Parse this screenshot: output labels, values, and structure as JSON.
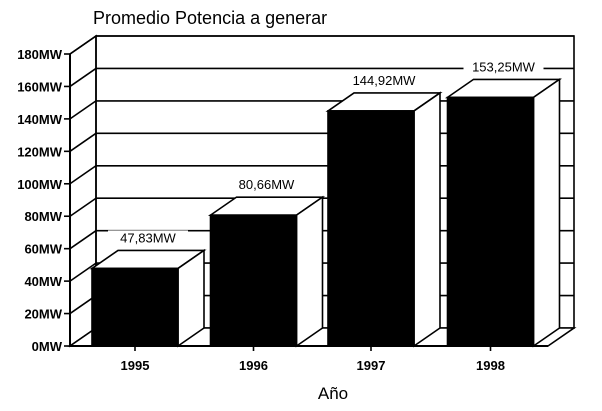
{
  "chart_data": {
    "type": "bar",
    "title": "Promedio Potencia a generar",
    "xlabel": "Año",
    "ylabel": "",
    "categories": [
      "1995",
      "1996",
      "1997",
      "1998"
    ],
    "values": [
      47.83,
      80.66,
      144.92,
      153.25
    ],
    "data_labels": [
      "47,83MW",
      "80,66MW",
      "144,92MW",
      "153,25MW"
    ],
    "ylim": [
      0,
      180
    ],
    "y_ticks": [
      0,
      20,
      40,
      60,
      80,
      100,
      120,
      140,
      160,
      180
    ],
    "y_tick_labels": [
      "0MW",
      "20MW",
      "40MW",
      "60MW",
      "80MW",
      "100MW",
      "120MW",
      "140MW",
      "160MW",
      "180MW"
    ],
    "grid": true,
    "style": "3d",
    "colors": {
      "bar_front": "#000000",
      "bar_side": "#ffffff",
      "background": "#ffffff",
      "lines": "#000000"
    }
  }
}
